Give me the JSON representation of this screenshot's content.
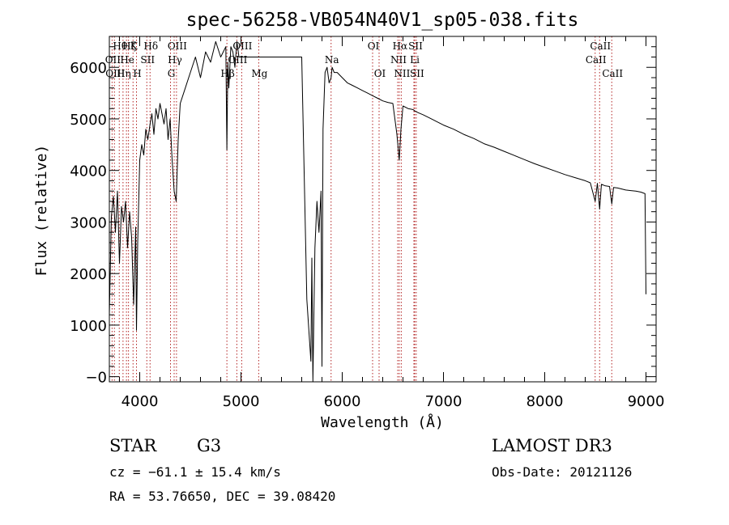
{
  "chart_data": {
    "type": "line",
    "title": "spec-56258-VB054N40V1_sp05-038.fits",
    "xlabel": "Wavelength (Å)",
    "ylabel": "Flux (relative)",
    "xlim": [
      3700,
      9100
    ],
    "ylim": [
      -100,
      6600
    ],
    "x_ticks": [
      4000,
      5000,
      6000,
      7000,
      8000,
      9000
    ],
    "y_ticks": [
      0,
      1000,
      2000,
      3000,
      4000,
      5000,
      6000
    ],
    "x_tick_labels": [
      "4000",
      "5000",
      "6000",
      "7000",
      "8000",
      "9000"
    ],
    "y_tick_labels": [
      "−0",
      "1000",
      "2000",
      "3000",
      "4000",
      "5000",
      "6000"
    ],
    "grid": false,
    "series": [
      {
        "name": "spectrum",
        "color": "#000000",
        "x": [
          3700,
          3720,
          3740,
          3760,
          3780,
          3800,
          3820,
          3840,
          3860,
          3880,
          3900,
          3920,
          3940,
          3960,
          3968,
          3980,
          4000,
          4020,
          4040,
          4060,
          4080,
          4102,
          4120,
          4140,
          4160,
          4180,
          4200,
          4220,
          4240,
          4260,
          4280,
          4300,
          4320,
          4340,
          4360,
          4380,
          4400,
          4450,
          4500,
          4550,
          4600,
          4650,
          4700,
          4750,
          4800,
          4850,
          4861,
          4870,
          4880,
          4900,
          4920,
          4940,
          4960,
          4980,
          5000,
          5050,
          5100,
          5150,
          5200,
          5300,
          5400,
          5500,
          5600,
          5650,
          5690,
          5700,
          5710,
          5720,
          5730,
          5750,
          5770,
          5790,
          5800,
          5810,
          5830,
          5850,
          5870,
          5890,
          5900,
          5920,
          5950,
          6000,
          6050,
          6100,
          6150,
          6200,
          6250,
          6300,
          6350,
          6400,
          6450,
          6500,
          6540,
          6563,
          6580,
          6600,
          6650,
          6700,
          6720,
          6750,
          6800,
          6850,
          6900,
          6950,
          7000,
          7100,
          7200,
          7300,
          7400,
          7500,
          7600,
          7700,
          7800,
          7900,
          8000,
          8100,
          8200,
          8300,
          8400,
          8450,
          8498,
          8520,
          8542,
          8560,
          8600,
          8640,
          8662,
          8680,
          8720,
          8760,
          8800,
          8850,
          8900,
          8950,
          8990,
          9000
        ],
        "y": [
          1200,
          3100,
          3500,
          2800,
          3600,
          2200,
          3300,
          3000,
          3400,
          2500,
          3200,
          2700,
          1400,
          2900,
          900,
          2600,
          4200,
          4500,
          4300,
          4800,
          4600,
          4900,
          5100,
          4700,
          5200,
          5000,
          5300,
          5100,
          4900,
          5200,
          4600,
          5000,
          4200,
          3600,
          3400,
          4600,
          5300,
          5600,
          5900,
          6200,
          5800,
          6300,
          6100,
          6500,
          6200,
          6400,
          4400,
          6100,
          5600,
          6400,
          6300,
          6000,
          6500,
          6200,
          6200,
          6200,
          6200,
          6200,
          6200,
          6200,
          6200,
          6200,
          6200,
          1500,
          300,
          2300,
          -100,
          1200,
          2500,
          3400,
          2800,
          3600,
          200,
          4800,
          5900,
          6000,
          5700,
          5800,
          6000,
          5900,
          5900,
          5800,
          5700,
          5650,
          5600,
          5550,
          5500,
          5450,
          5400,
          5350,
          5320,
          5300,
          4700,
          4200,
          4800,
          5250,
          5200,
          5180,
          5150,
          5120,
          5080,
          5030,
          4980,
          4930,
          4880,
          4800,
          4700,
          4620,
          4520,
          4450,
          4370,
          4290,
          4210,
          4130,
          4060,
          3990,
          3920,
          3860,
          3800,
          3760,
          3400,
          3750,
          3250,
          3730,
          3700,
          3690,
          3350,
          3670,
          3660,
          3640,
          3620,
          3610,
          3600,
          3580,
          3550,
          1600
        ]
      }
    ],
    "line_markers": [
      {
        "wavelength": 3727,
        "label": "OII",
        "row": 1,
        "kind": "emission"
      },
      {
        "wavelength": 3750,
        "label": "OIII",
        "row": 2,
        "kind": "emission"
      },
      {
        "wavelength": 3798,
        "label": "Hθ",
        "row": 0,
        "kind": "absorption"
      },
      {
        "wavelength": 3835,
        "label": "Hη",
        "row": 2,
        "kind": "absorption"
      },
      {
        "wavelength": 3869,
        "label": "He",
        "row": 1,
        "kind": "emission"
      },
      {
        "wavelength": 3889,
        "label": "Hζ",
        "row": 0,
        "kind": "absorption"
      },
      {
        "wavelength": 3934,
        "label": "K",
        "row": 0,
        "kind": "absorption"
      },
      {
        "wavelength": 3968,
        "label": "H",
        "row": 2,
        "kind": "absorption"
      },
      {
        "wavelength": 4070,
        "label": "SII",
        "row": 1,
        "kind": "emission"
      },
      {
        "wavelength": 4102,
        "label": "Hδ",
        "row": 0,
        "kind": "absorption"
      },
      {
        "wavelength": 4304,
        "label": "G",
        "row": 2,
        "kind": "absorption"
      },
      {
        "wavelength": 4340,
        "label": "Hγ",
        "row": 1,
        "kind": "absorption"
      },
      {
        "wavelength": 4363,
        "label": "OIII",
        "row": 0,
        "kind": "emission"
      },
      {
        "wavelength": 4861,
        "label": "Hβ",
        "row": 2,
        "kind": "absorption"
      },
      {
        "wavelength": 4959,
        "label": "OIII",
        "row": 1,
        "kind": "emission"
      },
      {
        "wavelength": 5007,
        "label": "OIII",
        "row": 0,
        "kind": "emission"
      },
      {
        "wavelength": 5175,
        "label": "Mg",
        "row": 2,
        "kind": "absorption"
      },
      {
        "wavelength": 5890,
        "label": "Na",
        "row": 1,
        "kind": "absorption"
      },
      {
        "wavelength": 6300,
        "label": "OI",
        "row": 0,
        "kind": "emission"
      },
      {
        "wavelength": 6364,
        "label": "OI",
        "row": 2,
        "kind": "emission"
      },
      {
        "wavelength": 6548,
        "label": "NII",
        "row": 1,
        "kind": "emission"
      },
      {
        "wavelength": 6563,
        "label": "Hα",
        "row": 0,
        "kind": "absorption"
      },
      {
        "wavelength": 6583,
        "label": "NII",
        "row": 2,
        "kind": "emission"
      },
      {
        "wavelength": 6708,
        "label": "Li",
        "row": 1,
        "kind": "absorption"
      },
      {
        "wavelength": 6716,
        "label": "SII",
        "row": 0,
        "kind": "emission"
      },
      {
        "wavelength": 6731,
        "label": "SII",
        "row": 2,
        "kind": "emission"
      },
      {
        "wavelength": 8498,
        "label": "CaII",
        "row": 1,
        "kind": "absorption"
      },
      {
        "wavelength": 8542,
        "label": "CaII",
        "row": 0,
        "kind": "absorption"
      },
      {
        "wavelength": 8662,
        "label": "CaII",
        "row": 2,
        "kind": "absorption"
      }
    ],
    "marker_color": "#b22222",
    "line_color": "#000000"
  },
  "info": {
    "class": "STAR",
    "subclass": "G3",
    "cz_text": "cz = −61.1 ± 15.4 km/s",
    "coords_text": "RA =  53.76650, DEC =  39.08420",
    "survey": "LAMOST DR3",
    "obs_date": "Obs-Date: 20121126"
  }
}
